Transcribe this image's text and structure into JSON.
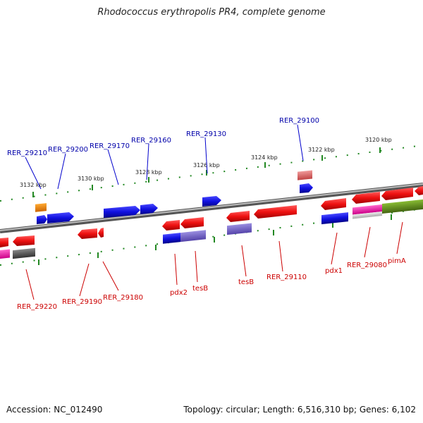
{
  "title": "Rhodococcus erythropolis PR4, complete genome",
  "footer": {
    "accession": "Accession: NC_012490",
    "topology": "Topology: circular; Length: 6,516,310 bp; Genes: 6,102"
  },
  "scale_ticks": [
    "3132 kbp",
    "3130 kbp",
    "3128 kbp",
    "3126 kbp",
    "3124 kbp",
    "3122 kbp",
    "3120 kbp"
  ],
  "gene_labels_top": [
    "RER_29210",
    "RER_29200",
    "RER_29170",
    "RER_29160",
    "RER_29130",
    "RER_29100"
  ],
  "gene_labels_bottom": [
    "RER_29220",
    "RER_29190",
    "RER_29180",
    "pdx2",
    "tesB",
    "tesB",
    "RER_29110",
    "pdx1",
    "RER_29080",
    "pimA"
  ],
  "colors": {
    "forward_gene": "#1010e0",
    "reverse_gene": "#ee1111",
    "pink_gene": "#ee1199",
    "olive_gene": "#669922",
    "orange_gene": "#ee8800",
    "grey_gene": "#666666",
    "lavender_gene": "#7766cc",
    "rose_gene": "#dd6666",
    "scale_ticks": "#228822",
    "backbone": "#888888"
  }
}
